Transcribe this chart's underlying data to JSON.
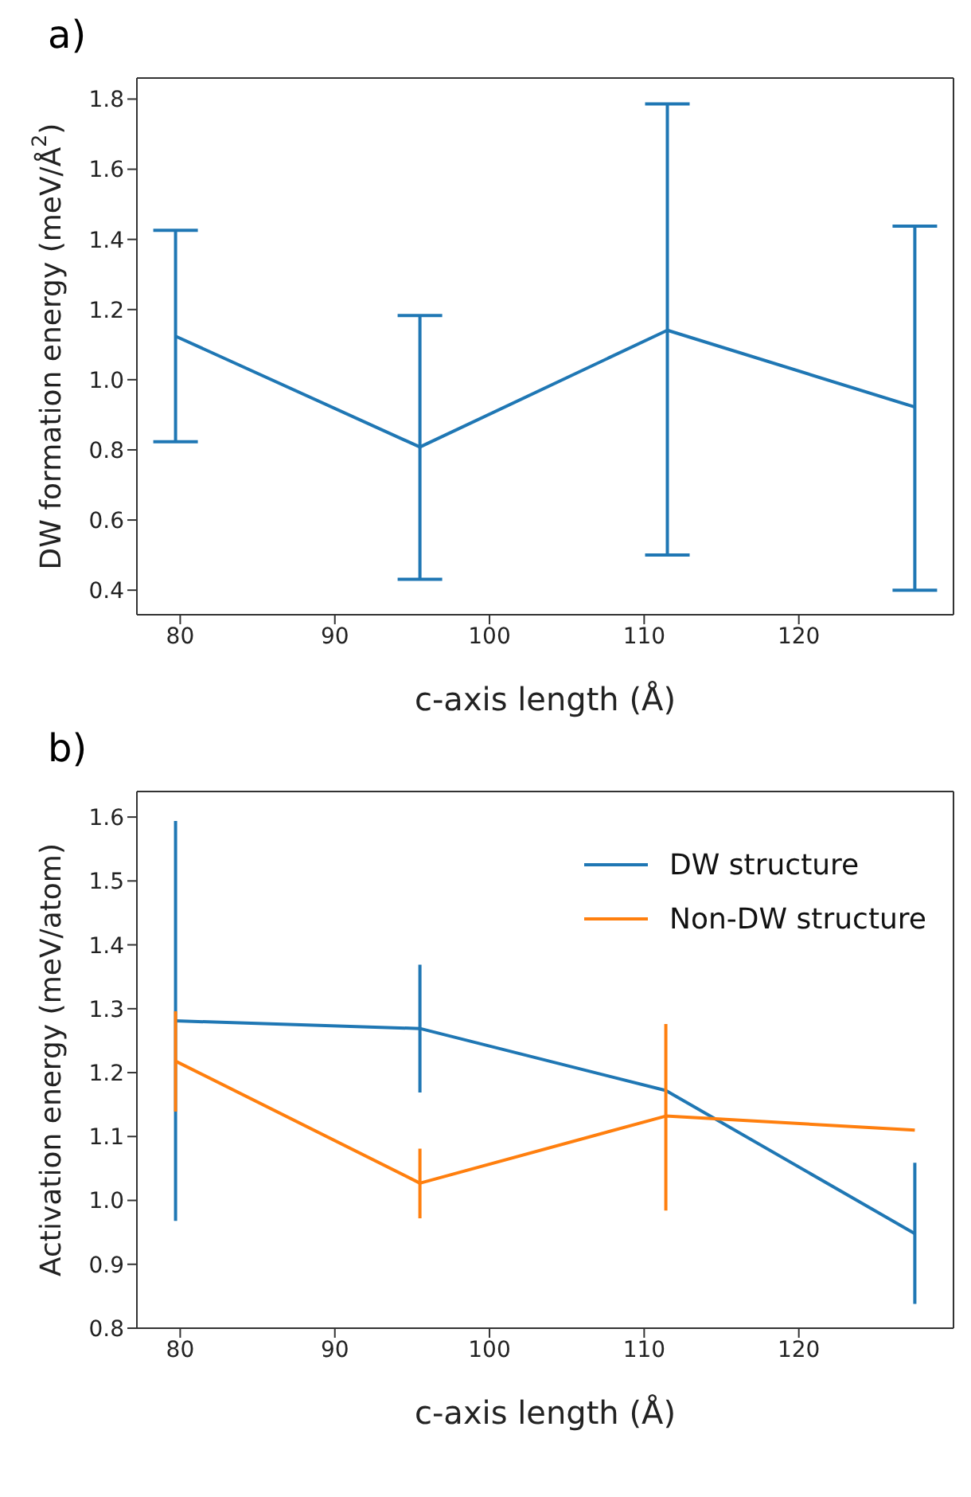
{
  "chart_data": [
    {
      "type": "line",
      "title": "a)",
      "xlabel": "c-axis length (Å)",
      "ylabel": "DW formation energy (meV/Å$^{2}$)",
      "x": [
        79.7,
        95.5,
        111.5,
        127.5
      ],
      "xlim": [
        77.2,
        130
      ],
      "xticks": [
        80,
        90,
        100,
        110,
        120
      ],
      "ylim": [
        0.33,
        1.86
      ],
      "yticks": [
        0.4,
        0.6,
        0.8,
        {
          "value": 1,
          "label": "1.0"
        },
        1.2,
        1.4,
        1.6,
        1.8
      ],
      "grid": false,
      "legend": false,
      "marker": "none",
      "line_style": "solid",
      "series": [
        {
          "color": "#1f77b4",
          "values": [
            1.124,
            0.808,
            1.141,
            0.922
          ],
          "errors": [
            [
              0.823,
              1.426
            ],
            [
              0.431,
              1.183
            ],
            [
              0.5,
              1.786
            ],
            [
              0.4,
              1.438
            ]
          ]
        }
      ]
    },
    {
      "type": "line",
      "title": "b)",
      "xlabel": "c-axis length (Å)",
      "ylabel": "Activation energy (meV/atom)",
      "x": [
        79.7,
        95.5,
        111.4,
        127.5
      ],
      "xlim": [
        77.2,
        130
      ],
      "xticks": [
        80,
        90,
        100,
        110,
        120
      ],
      "ylim": [
        0.8,
        1.64
      ],
      "yticks": [
        0.8,
        0.9,
        {
          "value": 1,
          "label": "1.0"
        },
        1.1,
        1.2,
        1.3,
        1.4,
        1.5,
        1.6
      ],
      "grid": false,
      "legend": "top right",
      "marker": "none",
      "line_style": "solid",
      "series": [
        {
          "name": "DW structure",
          "color": "#1f77b4",
          "values": [
            1.281,
            1.269,
            1.172,
            0.948
          ],
          "errors": [
            [
              0.968,
              1.594
            ],
            [
              1.169,
              1.369
            ],
            null,
            [
              0.838,
              1.059
            ]
          ]
        },
        {
          "name": "Non-DW structure",
          "color": "#ff7f0e",
          "values": [
            1.218,
            1.027,
            1.132,
            1.11
          ],
          "errors": [
            [
              1.139,
              1.296
            ],
            [
              0.972,
              1.081
            ],
            [
              0.984,
              1.276
            ],
            null
          ]
        }
      ]
    }
  ]
}
